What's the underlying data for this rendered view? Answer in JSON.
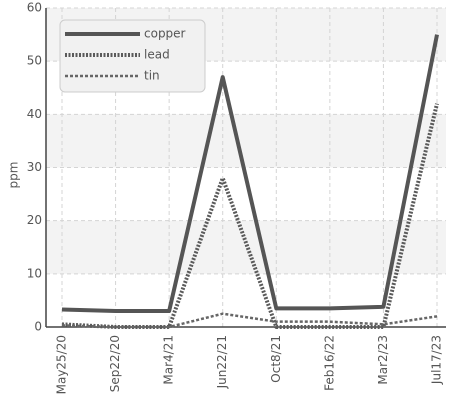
{
  "chart_data": {
    "type": "line",
    "y_label": "ppm",
    "categories": [
      "May25/20",
      "Sep22/20",
      "Mar4/21",
      "Jun22/21",
      "Oct8/21",
      "Feb16/22",
      "Mar2/23",
      "Jul17/23"
    ],
    "series": [
      {
        "name": "copper",
        "color": "#555555",
        "dash": "none",
        "width": 4,
        "values": [
          3.3,
          3,
          3,
          47,
          3.5,
          3.5,
          3.8,
          55
        ]
      },
      {
        "name": "lead",
        "color": "#5a5a5a",
        "dash": "2,1.5",
        "width": 4,
        "values": [
          0.5,
          0,
          0,
          28,
          0,
          0,
          0,
          42
        ]
      },
      {
        "name": "tin",
        "color": "#666666",
        "dash": "3,2",
        "width": 2.5,
        "values": [
          0.3,
          0,
          0,
          2.5,
          1,
          1,
          0.5,
          2
        ]
      }
    ],
    "ylim": [
      0,
      60
    ],
    "yticks": [
      0,
      10,
      20,
      30,
      40,
      50,
      60
    ],
    "grid": true,
    "legend": "top-left"
  }
}
